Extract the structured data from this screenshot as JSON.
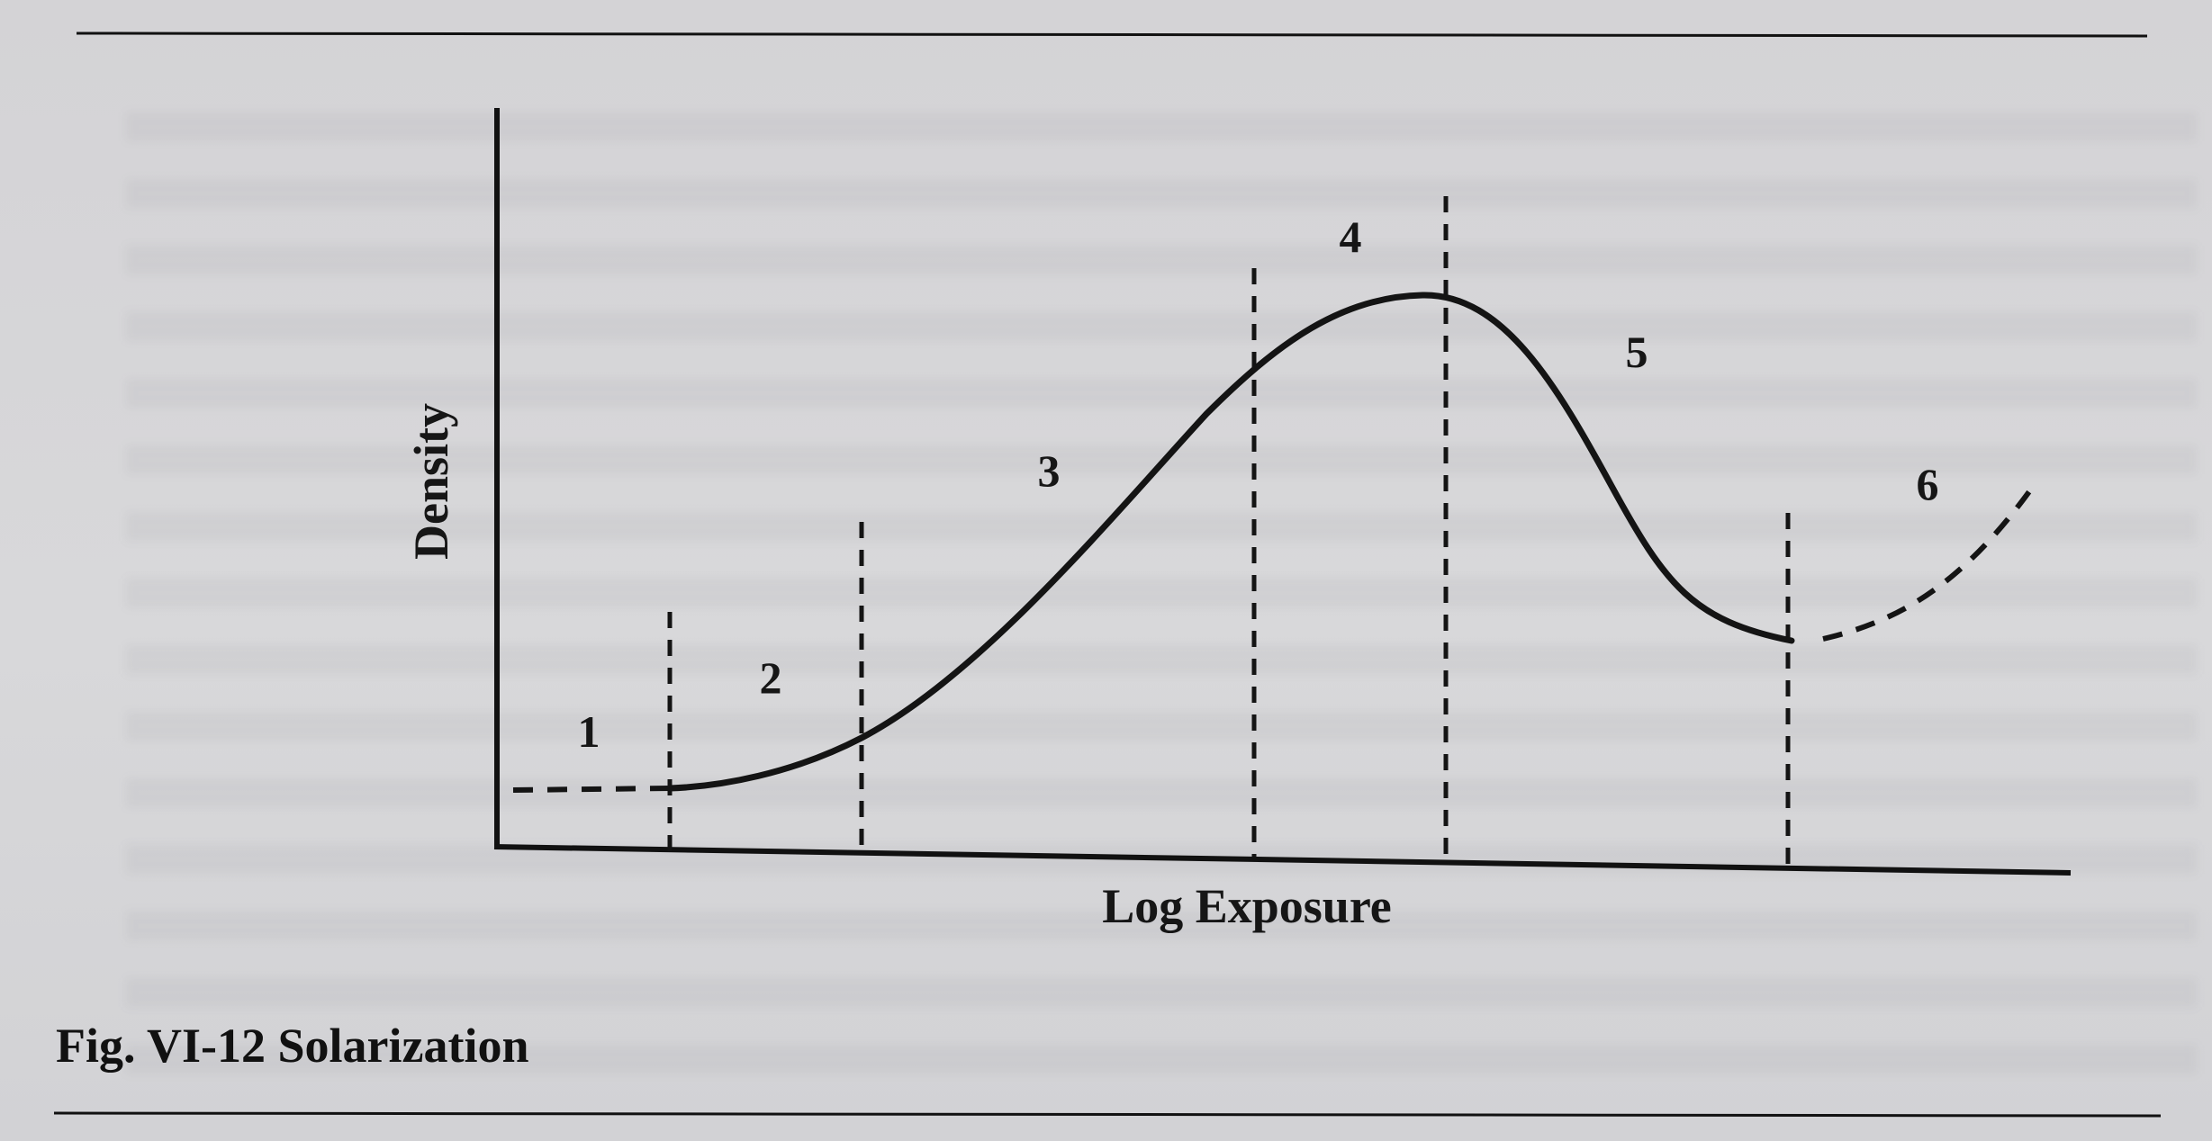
{
  "figure": {
    "caption": "Fig. VI-12 Solarization",
    "x_axis_label": "Log Exposure",
    "y_axis_label": "Density",
    "region_labels": [
      "1",
      "2",
      "3",
      "4",
      "5",
      "6"
    ]
  }
}
